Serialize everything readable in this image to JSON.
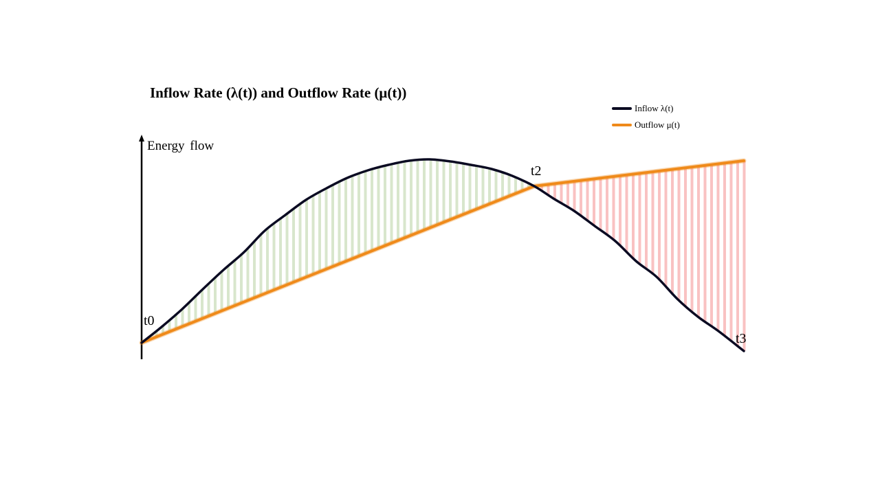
{
  "diagram": {
    "title": "Inflow Rate (λ(t)) and Outflow Rate (μ(t))",
    "y_axis_label": "Energy  flow",
    "points": {
      "t0": "t0",
      "t2": "t2",
      "t3": "t3"
    },
    "legend": {
      "inflow_label": "Inflow λ(t)",
      "outflow_label": "Outflow μ(t)"
    },
    "colors": {
      "inflow": "#0b0b22",
      "outflow": "#ef8a1a",
      "surplus_fill": "#d8e6cc",
      "deficit_fill": "#f9c2c2",
      "axis": "#000000"
    }
  }
}
